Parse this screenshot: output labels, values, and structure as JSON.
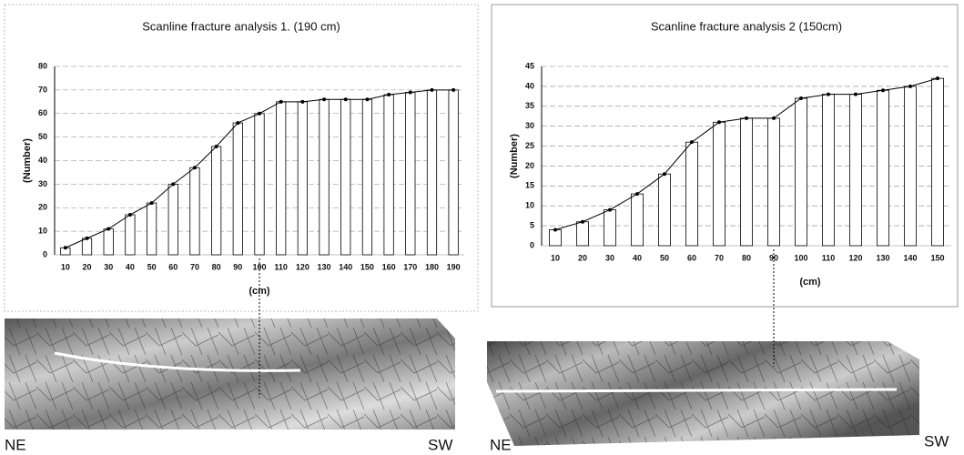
{
  "chart_data": [
    {
      "type": "bar",
      "title": "Scanline fracture analysis 1. (190 cm)",
      "x_label": "(cm)",
      "y_label": "(Number)",
      "categories": [
        "10",
        "20",
        "30",
        "40",
        "50",
        "60",
        "70",
        "80",
        "90",
        "100",
        "110",
        "120",
        "130",
        "140",
        "150",
        "160",
        "170",
        "180",
        "190"
      ],
      "values": [
        3,
        7,
        11,
        17,
        22,
        30,
        37,
        46,
        56,
        60,
        65,
        65,
        66,
        66,
        66,
        68,
        69,
        70,
        70
      ],
      "color": "#ffffff",
      "ylim": [
        0,
        80
      ],
      "yticks": [
        0,
        10,
        20,
        30,
        40,
        50,
        60,
        70,
        80
      ],
      "grid": true
    },
    {
      "type": "bar",
      "title": "Scanline fracture analysis 2 (150cm)",
      "x_label": "(cm)",
      "y_label": "(Number)",
      "categories": [
        "10",
        "20",
        "30",
        "40",
        "50",
        "60",
        "70",
        "80",
        "90",
        "100",
        "110",
        "120",
        "130",
        "140",
        "150"
      ],
      "values": [
        4,
        6,
        9,
        13,
        18,
        26,
        31,
        32,
        32,
        37,
        38,
        38,
        39,
        40,
        42
      ],
      "color": "#ffffff",
      "ylim": [
        0,
        45
      ],
      "yticks": [
        0,
        5,
        10,
        15,
        20,
        25,
        30,
        35,
        40,
        45
      ],
      "grid": true
    }
  ],
  "photo_labels": [
    {
      "left": "NE",
      "right": "SW"
    },
    {
      "left": "NE",
      "right": "SW"
    }
  ]
}
